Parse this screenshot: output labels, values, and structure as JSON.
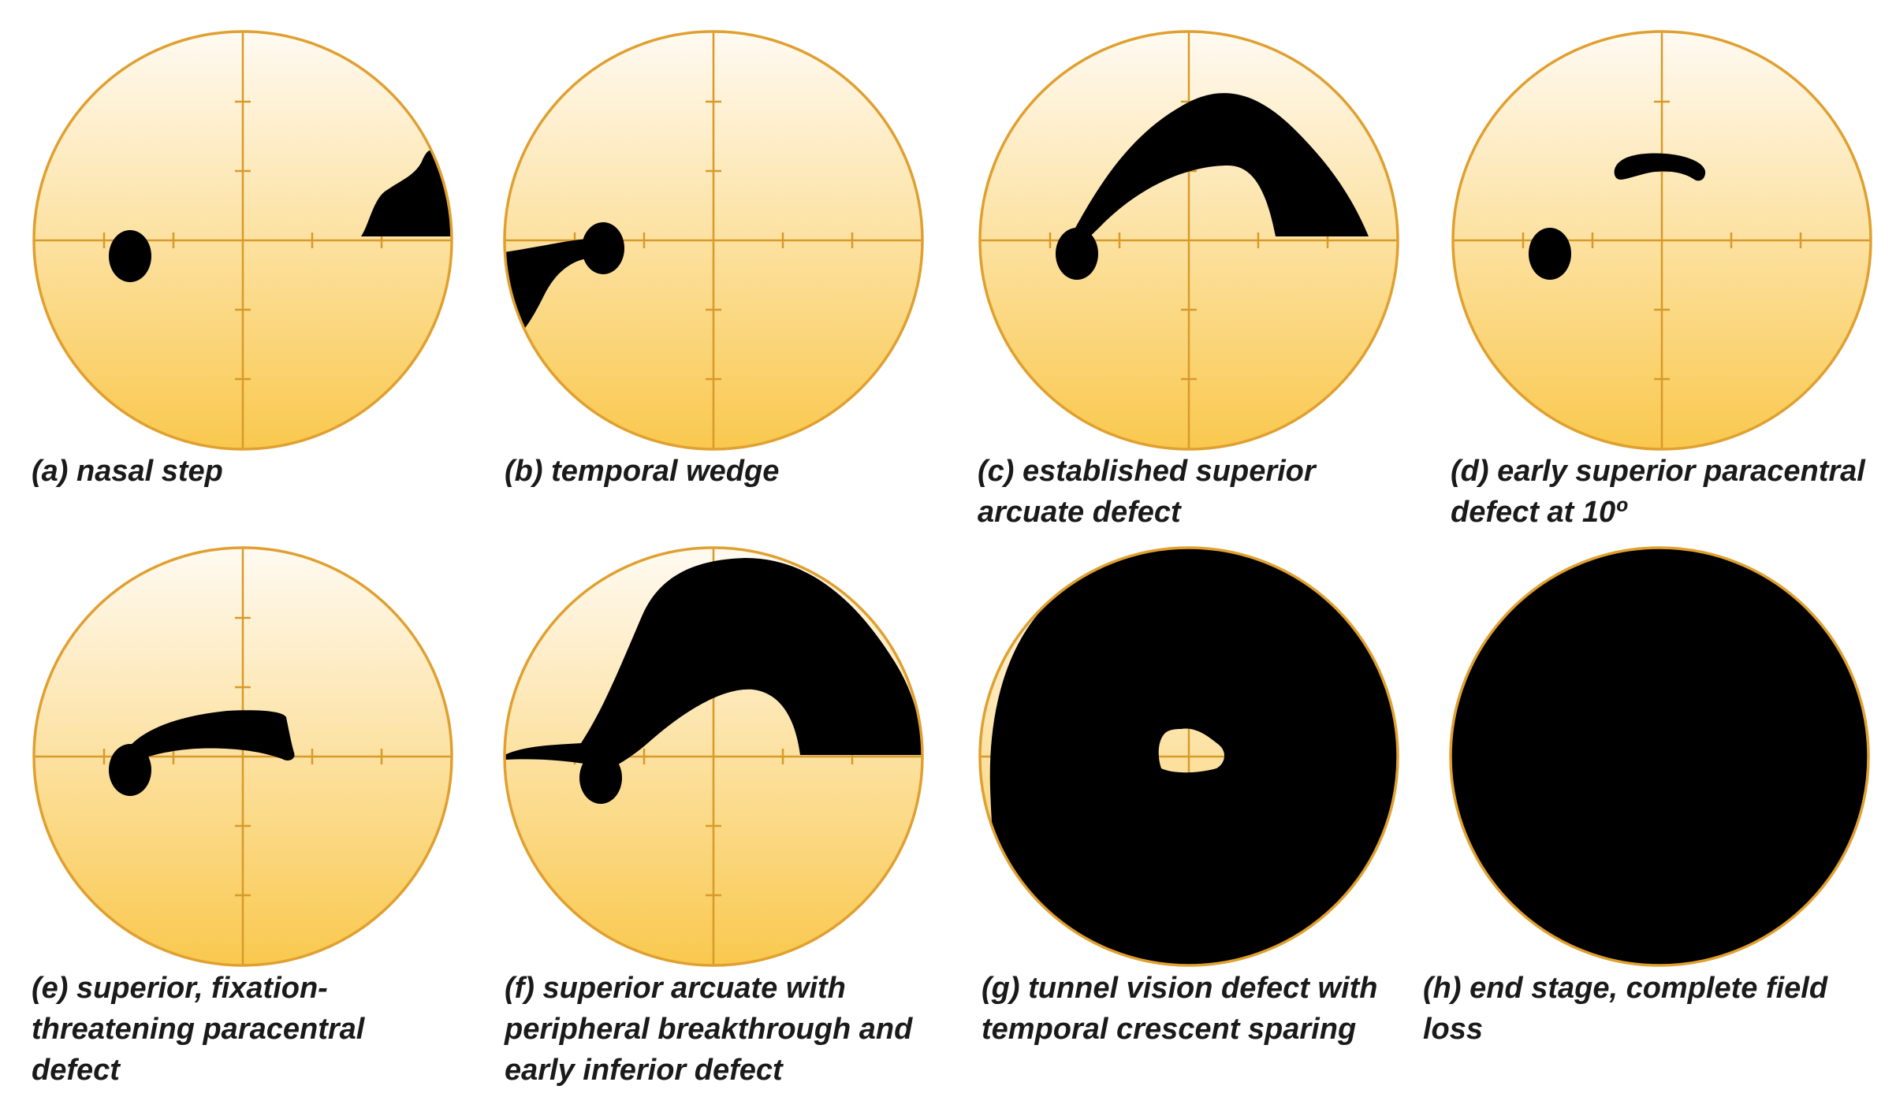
{
  "figure": {
    "colors": {
      "ring": "#e0a030",
      "axis": "#d89a2a",
      "gradient_top": "#fffaf2",
      "gradient_bottom": "#f9c84e",
      "defect": "#000000",
      "text": "#1a1a1a"
    },
    "panels": [
      {
        "id": "a",
        "caption_lines": [
          "(a) nasal step"
        ]
      },
      {
        "id": "b",
        "caption_lines": [
          "(b) temporal wedge"
        ]
      },
      {
        "id": "c",
        "caption_lines": [
          "(c) established superior",
          "arcuate defect"
        ]
      },
      {
        "id": "d",
        "caption_lines": [
          "(d) early superior paracentral",
          "defect at 10º"
        ]
      },
      {
        "id": "e",
        "caption_lines": [
          "(e) superior, fixation-",
          "threatening paracentral",
          "defect"
        ]
      },
      {
        "id": "f",
        "caption_lines": [
          "(f) superior arcuate with",
          "peripheral breakthrough and",
          "early inferior defect"
        ]
      },
      {
        "id": "g",
        "caption_lines": [
          "(g) tunnel vision defect with",
          "temporal crescent sparing"
        ]
      },
      {
        "id": "h",
        "caption_lines": [
          "(h) end stage, complete field",
          "loss"
        ]
      }
    ]
  }
}
